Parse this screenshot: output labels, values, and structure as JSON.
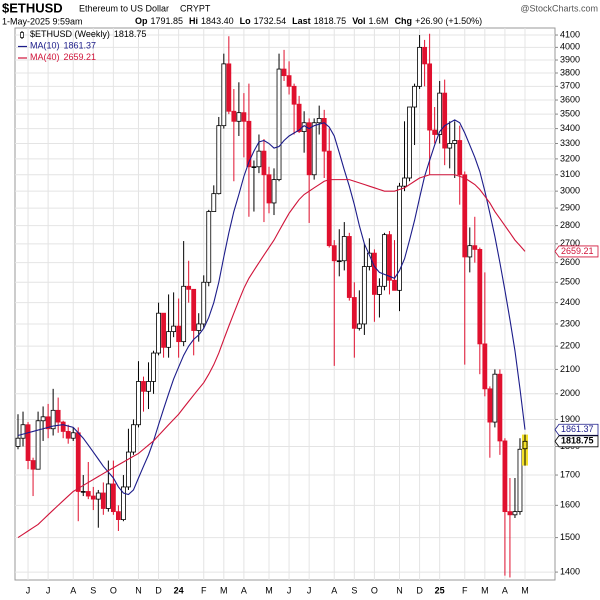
{
  "chart_data": {
    "type": "candlestick",
    "title": "$ETHUSD",
    "subtitle": "Ethereum to US Dollar",
    "exchange": "CRYPT",
    "date": "1-May-2025 9:59am",
    "watermark": "@StockCharts.com",
    "quote": [
      {
        "label": "Op",
        "value": "1791.85"
      },
      {
        "label": "Hi",
        "value": "1843.40"
      },
      {
        "label": "Lo",
        "value": "1732.54"
      },
      {
        "label": "Last",
        "value": "1818.75"
      },
      {
        "label": "Vol",
        "value": "1.6M"
      },
      {
        "label": "Chg",
        "value": "+26.90 (+1.50%)"
      }
    ],
    "price_name": "$ETHUSD (Weekly)",
    "categories": [
      null,
      null,
      "J",
      null,
      null,
      null,
      "J",
      null,
      null,
      null,
      null,
      "A",
      null,
      null,
      null,
      "S",
      null,
      null,
      null,
      "O",
      null,
      null,
      null,
      null,
      "N",
      null,
      null,
      null,
      "D",
      null,
      null,
      null,
      "24",
      null,
      null,
      null,
      null,
      "F",
      null,
      null,
      null,
      "M",
      null,
      null,
      null,
      "A",
      null,
      null,
      null,
      null,
      "M",
      null,
      null,
      null,
      "J",
      null,
      null,
      null,
      "J",
      null,
      null,
      null,
      null,
      "A",
      null,
      null,
      null,
      "S",
      null,
      null,
      null,
      "O",
      null,
      null,
      null,
      null,
      "N",
      null,
      null,
      null,
      "D",
      null,
      null,
      null,
      "25",
      null,
      null,
      null,
      null,
      "F",
      null,
      null,
      null,
      "M",
      null,
      null,
      null,
      "A",
      null,
      null,
      null,
      "M"
    ],
    "open": [
      1800,
      1830,
      1880,
      1750,
      1720,
      1895,
      1910,
      1865,
      1935,
      1890,
      1855,
      1830,
      1850,
      1645,
      1645,
      1630,
      1620,
      1640,
      1590,
      1670,
      1580,
      1555,
      1660,
      1780,
      1880,
      2050,
      2010,
      2050,
      2170,
      2350,
      2195,
      2265,
      2290,
      2220,
      2480,
      2465,
      2270,
      2300,
      2500,
      2880,
      2985,
      3420,
      3870,
      3520,
      3450,
      3510,
      3450,
      3150,
      3150,
      3250,
      3100,
      2930,
      3070,
      3830,
      3780,
      3700,
      3570,
      3380,
      3440,
      3100,
      3440,
      3470,
      3250,
      2690,
      2610,
      2610,
      2740,
      2425,
      2280,
      2300,
      2580,
      2650,
      2440,
      2480,
      2750,
      2510,
      2460,
      3030,
      3080,
      3550,
      3700,
      4000,
      3870,
      3390,
      3360,
      3650,
      3270,
      3300,
      3320,
      3100,
      2630,
      2690,
      2670,
      2210,
      2020,
      1890,
      2080,
      1820,
      1580,
      1570,
      1580,
      1791.85
    ],
    "high": [
      1920,
      1930,
      1890,
      1760,
      1930,
      1950,
      1960,
      2020,
      1985,
      1895,
      1880,
      1870,
      1870,
      1700,
      1745,
      1660,
      1650,
      1675,
      1750,
      1750,
      1600,
      1700,
      1865,
      1900,
      2135,
      2070,
      2130,
      2180,
      2400,
      2350,
      2440,
      2450,
      2420,
      2715,
      2610,
      2465,
      2350,
      2535,
      2890,
      3035,
      3480,
      3950,
      4090,
      3680,
      3730,
      3650,
      3720,
      3190,
      3360,
      3330,
      3150,
      3140,
      3950,
      3980,
      3890,
      3720,
      3630,
      3520,
      3470,
      3470,
      3560,
      3530,
      3400,
      2720,
      2780,
      2820,
      2760,
      2500,
      2460,
      2700,
      2730,
      2670,
      2520,
      2760,
      2770,
      2720,
      3050,
      3450,
      3550,
      3720,
      4100,
      4060,
      4110,
      3550,
      3740,
      3750,
      3450,
      3450,
      3420,
      3120,
      2790,
      2850,
      2680,
      2550,
      2030,
      2100,
      2100,
      1830,
      1690,
      1690,
      1830,
      1843.4
    ],
    "low": [
      1790,
      1800,
      1720,
      1630,
      1720,
      1820,
      1830,
      1840,
      1850,
      1830,
      1810,
      1820,
      1550,
      1630,
      1620,
      1585,
      1530,
      1570,
      1580,
      1570,
      1520,
      1550,
      1650,
      1770,
      1870,
      1930,
      1940,
      2000,
      2160,
      2150,
      2150,
      2240,
      2150,
      2200,
      2400,
      2160,
      2220,
      2280,
      2480,
      2880,
      2980,
      3400,
      3500,
      3060,
      3350,
      3210,
      2850,
      2880,
      3110,
      2820,
      2870,
      2860,
      3060,
      3740,
      3640,
      3360,
      3370,
      3240,
      2815,
      3070,
      3360,
      3080,
      2680,
      2115,
      2530,
      2560,
      2410,
      2150,
      2270,
      2250,
      2560,
      2310,
      2330,
      2460,
      2440,
      2460,
      2360,
      3000,
      3060,
      3290,
      3680,
      3700,
      3100,
      3300,
      3300,
      3160,
      3140,
      3080,
      2920,
      2120,
      2550,
      2600,
      2080,
      1990,
      1760,
      1870,
      1770,
      1390,
      1385,
      1560,
      1570,
      1732.54
    ],
    "close": [
      1830,
      1880,
      1750,
      1720,
      1895,
      1910,
      1865,
      1935,
      1890,
      1855,
      1830,
      1850,
      1645,
      1645,
      1630,
      1620,
      1640,
      1590,
      1670,
      1580,
      1555,
      1660,
      1780,
      1880,
      2050,
      2010,
      2050,
      2170,
      2350,
      2195,
      2265,
      2290,
      2220,
      2480,
      2465,
      2270,
      2300,
      2500,
      2880,
      2985,
      3420,
      3870,
      3520,
      3450,
      3510,
      3450,
      3150,
      3150,
      3250,
      3100,
      2930,
      3070,
      3830,
      3780,
      3700,
      3570,
      3380,
      3440,
      3100,
      3440,
      3470,
      3250,
      2690,
      2610,
      2610,
      2740,
      2425,
      2280,
      2300,
      2580,
      2650,
      2440,
      2480,
      2750,
      2510,
      2460,
      3030,
      3080,
      3550,
      3700,
      4000,
      3870,
      3390,
      3360,
      3650,
      3270,
      3300,
      3320,
      3100,
      2630,
      2690,
      2670,
      2210,
      2020,
      1890,
      2080,
      1820,
      1580,
      1570,
      1580,
      1790,
      1818.75
    ],
    "up_color": "#000000",
    "down_color": "#e0102e",
    "last_color": "#f2e02a",
    "series": [
      {
        "name": "MA(10)",
        "color": "#1c1c8a",
        "values": [
          1840,
          1845,
          1850,
          1855,
          1860,
          1865,
          1870,
          1875,
          1878,
          1880,
          1875,
          1870,
          1850,
          1830,
          1805,
          1780,
          1755,
          1730,
          1710,
          1690,
          1660,
          1640,
          1635,
          1650,
          1690,
          1730,
          1770,
          1820,
          1880,
          1940,
          2000,
          2060,
          2110,
          2160,
          2200,
          2230,
          2250,
          2280,
          2330,
          2400,
          2500,
          2630,
          2760,
          2880,
          2980,
          3090,
          3180,
          3250,
          3310,
          3320,
          3300,
          3270,
          3280,
          3320,
          3350,
          3370,
          3390,
          3420,
          3400,
          3420,
          3430,
          3440,
          3410,
          3350,
          3240,
          3130,
          3030,
          2920,
          2800,
          2700,
          2640,
          2580,
          2550,
          2540,
          2530,
          2520,
          2560,
          2620,
          2720,
          2830,
          2960,
          3090,
          3190,
          3290,
          3380,
          3420,
          3440,
          3460,
          3440,
          3370,
          3290,
          3210,
          3120,
          3000,
          2870,
          2740,
          2600,
          2460,
          2320,
          2180,
          2020,
          1861.37
        ]
      },
      {
        "name": "MA(40)",
        "color": "#d0143a",
        "values": [
          1500,
          1510,
          1520,
          1530,
          1540,
          1555,
          1570,
          1585,
          1600,
          1615,
          1630,
          1645,
          1655,
          1665,
          1675,
          1685,
          1695,
          1705,
          1715,
          1725,
          1735,
          1745,
          1755,
          1765,
          1775,
          1790,
          1805,
          1820,
          1840,
          1860,
          1880,
          1900,
          1920,
          1945,
          1970,
          1995,
          2020,
          2045,
          2080,
          2120,
          2170,
          2230,
          2290,
          2350,
          2410,
          2470,
          2520,
          2560,
          2600,
          2640,
          2680,
          2720,
          2770,
          2820,
          2870,
          2910,
          2950,
          2980,
          3000,
          3020,
          3040,
          3060,
          3070,
          3070,
          3070,
          3070,
          3070,
          3060,
          3050,
          3040,
          3030,
          3020,
          3010,
          3000,
          3000,
          3000,
          3010,
          3020,
          3040,
          3060,
          3080,
          3090,
          3100,
          3100,
          3100,
          3100,
          3100,
          3100,
          3090,
          3080,
          3060,
          3040,
          3010,
          2970,
          2930,
          2880,
          2840,
          2800,
          2760,
          2720,
          2690,
          2659.21
        ]
      }
    ],
    "log": true,
    "grid": true,
    "ylim": [
      1378,
      4158
    ],
    "yticks": [
      1400,
      1500,
      1600,
      1700,
      1800,
      1900,
      2000,
      2100,
      2200,
      2300,
      2400,
      2500,
      2600,
      2700,
      2800,
      2900,
      3000,
      3100,
      3200,
      3300,
      3400,
      3500,
      3600,
      3700,
      3800,
      3900,
      4000,
      4100
    ]
  }
}
